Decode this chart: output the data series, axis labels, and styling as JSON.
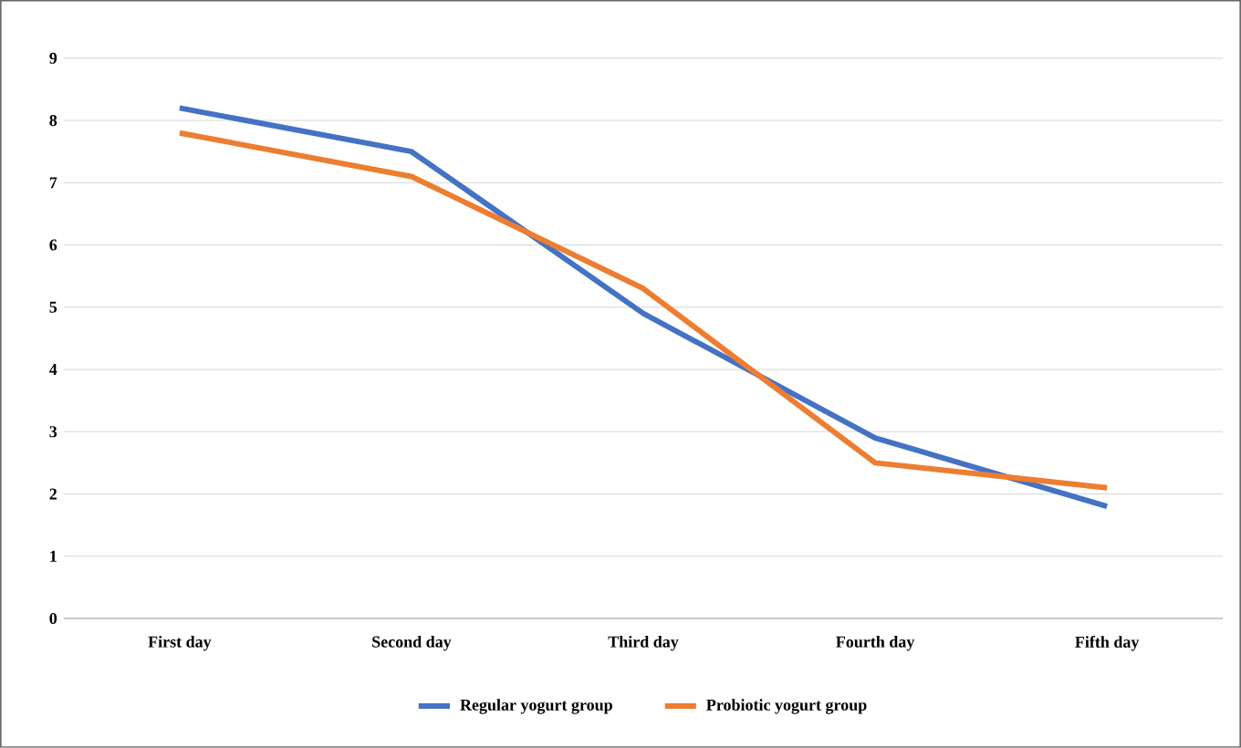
{
  "chart_data": {
    "type": "line",
    "categories": [
      "First day",
      "Second day",
      "Third day",
      "Fourth day",
      "Fifth day"
    ],
    "series": [
      {
        "name": "Regular yogurt group",
        "color": "#4472c4",
        "values": [
          8.2,
          7.5,
          4.9,
          2.9,
          1.8
        ]
      },
      {
        "name": "Probiotic yogurt group",
        "color": "#ed7d31",
        "values": [
          7.8,
          7.1,
          5.3,
          2.5,
          2.1
        ]
      }
    ],
    "ylim": [
      0,
      9
    ],
    "yticks": [
      0,
      1,
      2,
      3,
      4,
      5,
      6,
      7,
      8,
      9
    ],
    "grid": "y",
    "legend": "bottom",
    "marker": "none",
    "line_style": "solid"
  }
}
